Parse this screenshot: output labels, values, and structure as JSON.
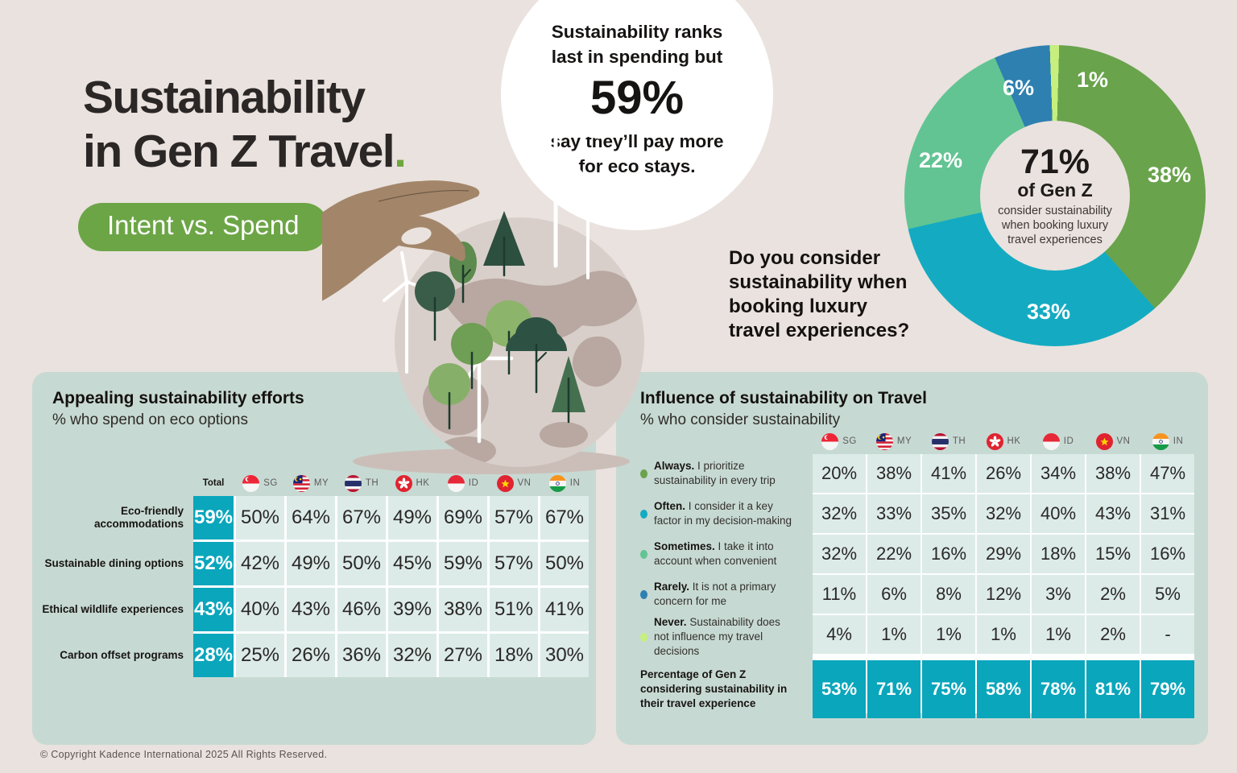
{
  "colors": {
    "background": "#eae2de",
    "panel": "#c7d9d3",
    "cell": "#dcebe8",
    "teal": "#0aa6bc",
    "olive_green": "#69a34c",
    "sea_green": "#62c493",
    "blue": "#2e80b0",
    "lime": "#c7ef7d",
    "pill_green": "#6ca546"
  },
  "header": {
    "title_line1": "Sustainability",
    "title_line2": "in Gen Z Travel",
    "title_dot": ".",
    "badge_label": "Intent vs. Spend"
  },
  "callout": {
    "top_line1": "Sustainability ranks",
    "top_line2": "last in spending but",
    "stat": "59%",
    "bottom_line1": "say they’ll pay more",
    "bottom_line2": "for eco stays."
  },
  "donut": {
    "question_lines": [
      "Do you consider",
      "sustainability when",
      "booking luxury",
      "travel experiences?"
    ],
    "center": {
      "stat": "71%",
      "of": "of Gen Z",
      "desc1": "consider sustainability",
      "desc2": "when booking luxury",
      "desc3": "travel experiences"
    },
    "segments": [
      {
        "name": "never",
        "label": "1%",
        "value": 1,
        "color": "#c7ef7d"
      },
      {
        "name": "always",
        "label": "38%",
        "value": 38,
        "color": "#69a34c"
      },
      {
        "name": "often",
        "label": "33%",
        "value": 33,
        "color": "#14abc2"
      },
      {
        "name": "sometimes",
        "label": "22%",
        "value": 22,
        "color": "#62c493"
      },
      {
        "name": "rarely",
        "label": "6%",
        "value": 6,
        "color": "#2e80b0"
      }
    ]
  },
  "countries": [
    "SG",
    "MY",
    "TH",
    "HK",
    "ID",
    "VN",
    "IN"
  ],
  "left_table": {
    "title": "Appealing sustainability efforts",
    "subtitle": "% who spend on eco options",
    "total_header": "Total",
    "rows": [
      {
        "label": "Eco-friendly accommodations",
        "total": "59%",
        "values": [
          "50%",
          "64%",
          "67%",
          "49%",
          "69%",
          "57%",
          "67%"
        ]
      },
      {
        "label": "Sustainable dining options",
        "total": "52%",
        "values": [
          "42%",
          "49%",
          "50%",
          "45%",
          "59%",
          "57%",
          "50%"
        ]
      },
      {
        "label": "Ethical wildlife experiences",
        "total": "43%",
        "values": [
          "40%",
          "43%",
          "46%",
          "39%",
          "38%",
          "51%",
          "41%"
        ]
      },
      {
        "label": "Carbon offset programs",
        "total": "28%",
        "values": [
          "25%",
          "26%",
          "36%",
          "32%",
          "27%",
          "18%",
          "30%"
        ]
      }
    ]
  },
  "right_table": {
    "title": "Influence of sustainability on Travel",
    "subtitle": "% who consider sustainability",
    "rows": [
      {
        "bold": "Always.",
        "rest": "I prioritize sustainability in every trip",
        "bullet": "#69a34c",
        "values": [
          "20%",
          "38%",
          "41%",
          "26%",
          "34%",
          "38%",
          "47%"
        ]
      },
      {
        "bold": "Often.",
        "rest": "I consider it a key factor in my decision-making",
        "bullet": "#14abc2",
        "values": [
          "32%",
          "33%",
          "35%",
          "32%",
          "40%",
          "43%",
          "31%"
        ]
      },
      {
        "bold": "Sometimes.",
        "rest": "I take it into account when convenient",
        "bullet": "#62c493",
        "values": [
          "32%",
          "22%",
          "16%",
          "29%",
          "18%",
          "15%",
          "16%"
        ]
      },
      {
        "bold": "Rarely.",
        "rest": "It is not a primary concern for me",
        "bullet": "#2e80b0",
        "values": [
          "11%",
          "6%",
          "8%",
          "12%",
          "3%",
          "2%",
          "5%"
        ]
      },
      {
        "bold": "Never.",
        "rest": "Sustainability does not influence my travel decisions",
        "bullet": "#c7ef7d",
        "values": [
          "4%",
          "1%",
          "1%",
          "1%",
          "1%",
          "2%",
          "-"
        ]
      }
    ],
    "total_row": {
      "label": "Percentage of Gen Z considering sustainability in their travel experience",
      "values": [
        "53%",
        "71%",
        "75%",
        "58%",
        "78%",
        "81%",
        "79%"
      ]
    }
  },
  "footer": {
    "copyright": "© Copyright Kadence International 2025 All Rights Reserved."
  },
  "chart_data": [
    {
      "type": "pie",
      "title": "Do you consider sustainability when booking luxury travel experiences?",
      "center_callout": "71% of Gen Z consider sustainability when booking luxury travel experiences",
      "labels": [
        "Always",
        "Often",
        "Sometimes",
        "Rarely",
        "Never"
      ],
      "values": [
        38,
        33,
        22,
        6,
        1
      ],
      "colors": [
        "#69a34c",
        "#14abc2",
        "#62c493",
        "#2e80b0",
        "#c7ef7d"
      ],
      "donut": true,
      "legend_position": "none"
    },
    {
      "type": "table",
      "title": "Appealing sustainability efforts",
      "subtitle": "% who spend on eco options",
      "columns": [
        "Total",
        "SG",
        "MY",
        "TH",
        "HK",
        "ID",
        "VN",
        "IN"
      ],
      "rows": [
        [
          "Eco-friendly accommodations",
          59,
          50,
          64,
          67,
          49,
          69,
          57,
          67
        ],
        [
          "Sustainable dining options",
          52,
          42,
          49,
          50,
          45,
          59,
          57,
          50
        ],
        [
          "Ethical wildlife experiences",
          43,
          40,
          43,
          46,
          39,
          38,
          51,
          41
        ],
        [
          "Carbon offset programs",
          28,
          25,
          26,
          36,
          32,
          27,
          18,
          30
        ]
      ]
    },
    {
      "type": "table",
      "title": "Influence of sustainability on Travel",
      "subtitle": "% who consider sustainability",
      "columns": [
        "SG",
        "MY",
        "TH",
        "HK",
        "ID",
        "VN",
        "IN"
      ],
      "rows": [
        [
          "Always. I prioritize sustainability in every trip",
          20,
          38,
          41,
          26,
          34,
          38,
          47
        ],
        [
          "Often. I consider it a key factor in my decision-making",
          32,
          33,
          35,
          32,
          40,
          43,
          31
        ],
        [
          "Sometimes. I take it into account when convenient",
          32,
          22,
          16,
          29,
          18,
          15,
          16
        ],
        [
          "Rarely. It is not a primary concern for me",
          11,
          6,
          8,
          12,
          3,
          2,
          5
        ],
        [
          "Never. Sustainability does not influence my travel decisions",
          4,
          1,
          1,
          1,
          1,
          2,
          null
        ]
      ],
      "total_row": [
        "Percentage of Gen Z considering sustainability in their travel experience",
        53,
        71,
        75,
        58,
        78,
        81,
        79
      ]
    }
  ]
}
